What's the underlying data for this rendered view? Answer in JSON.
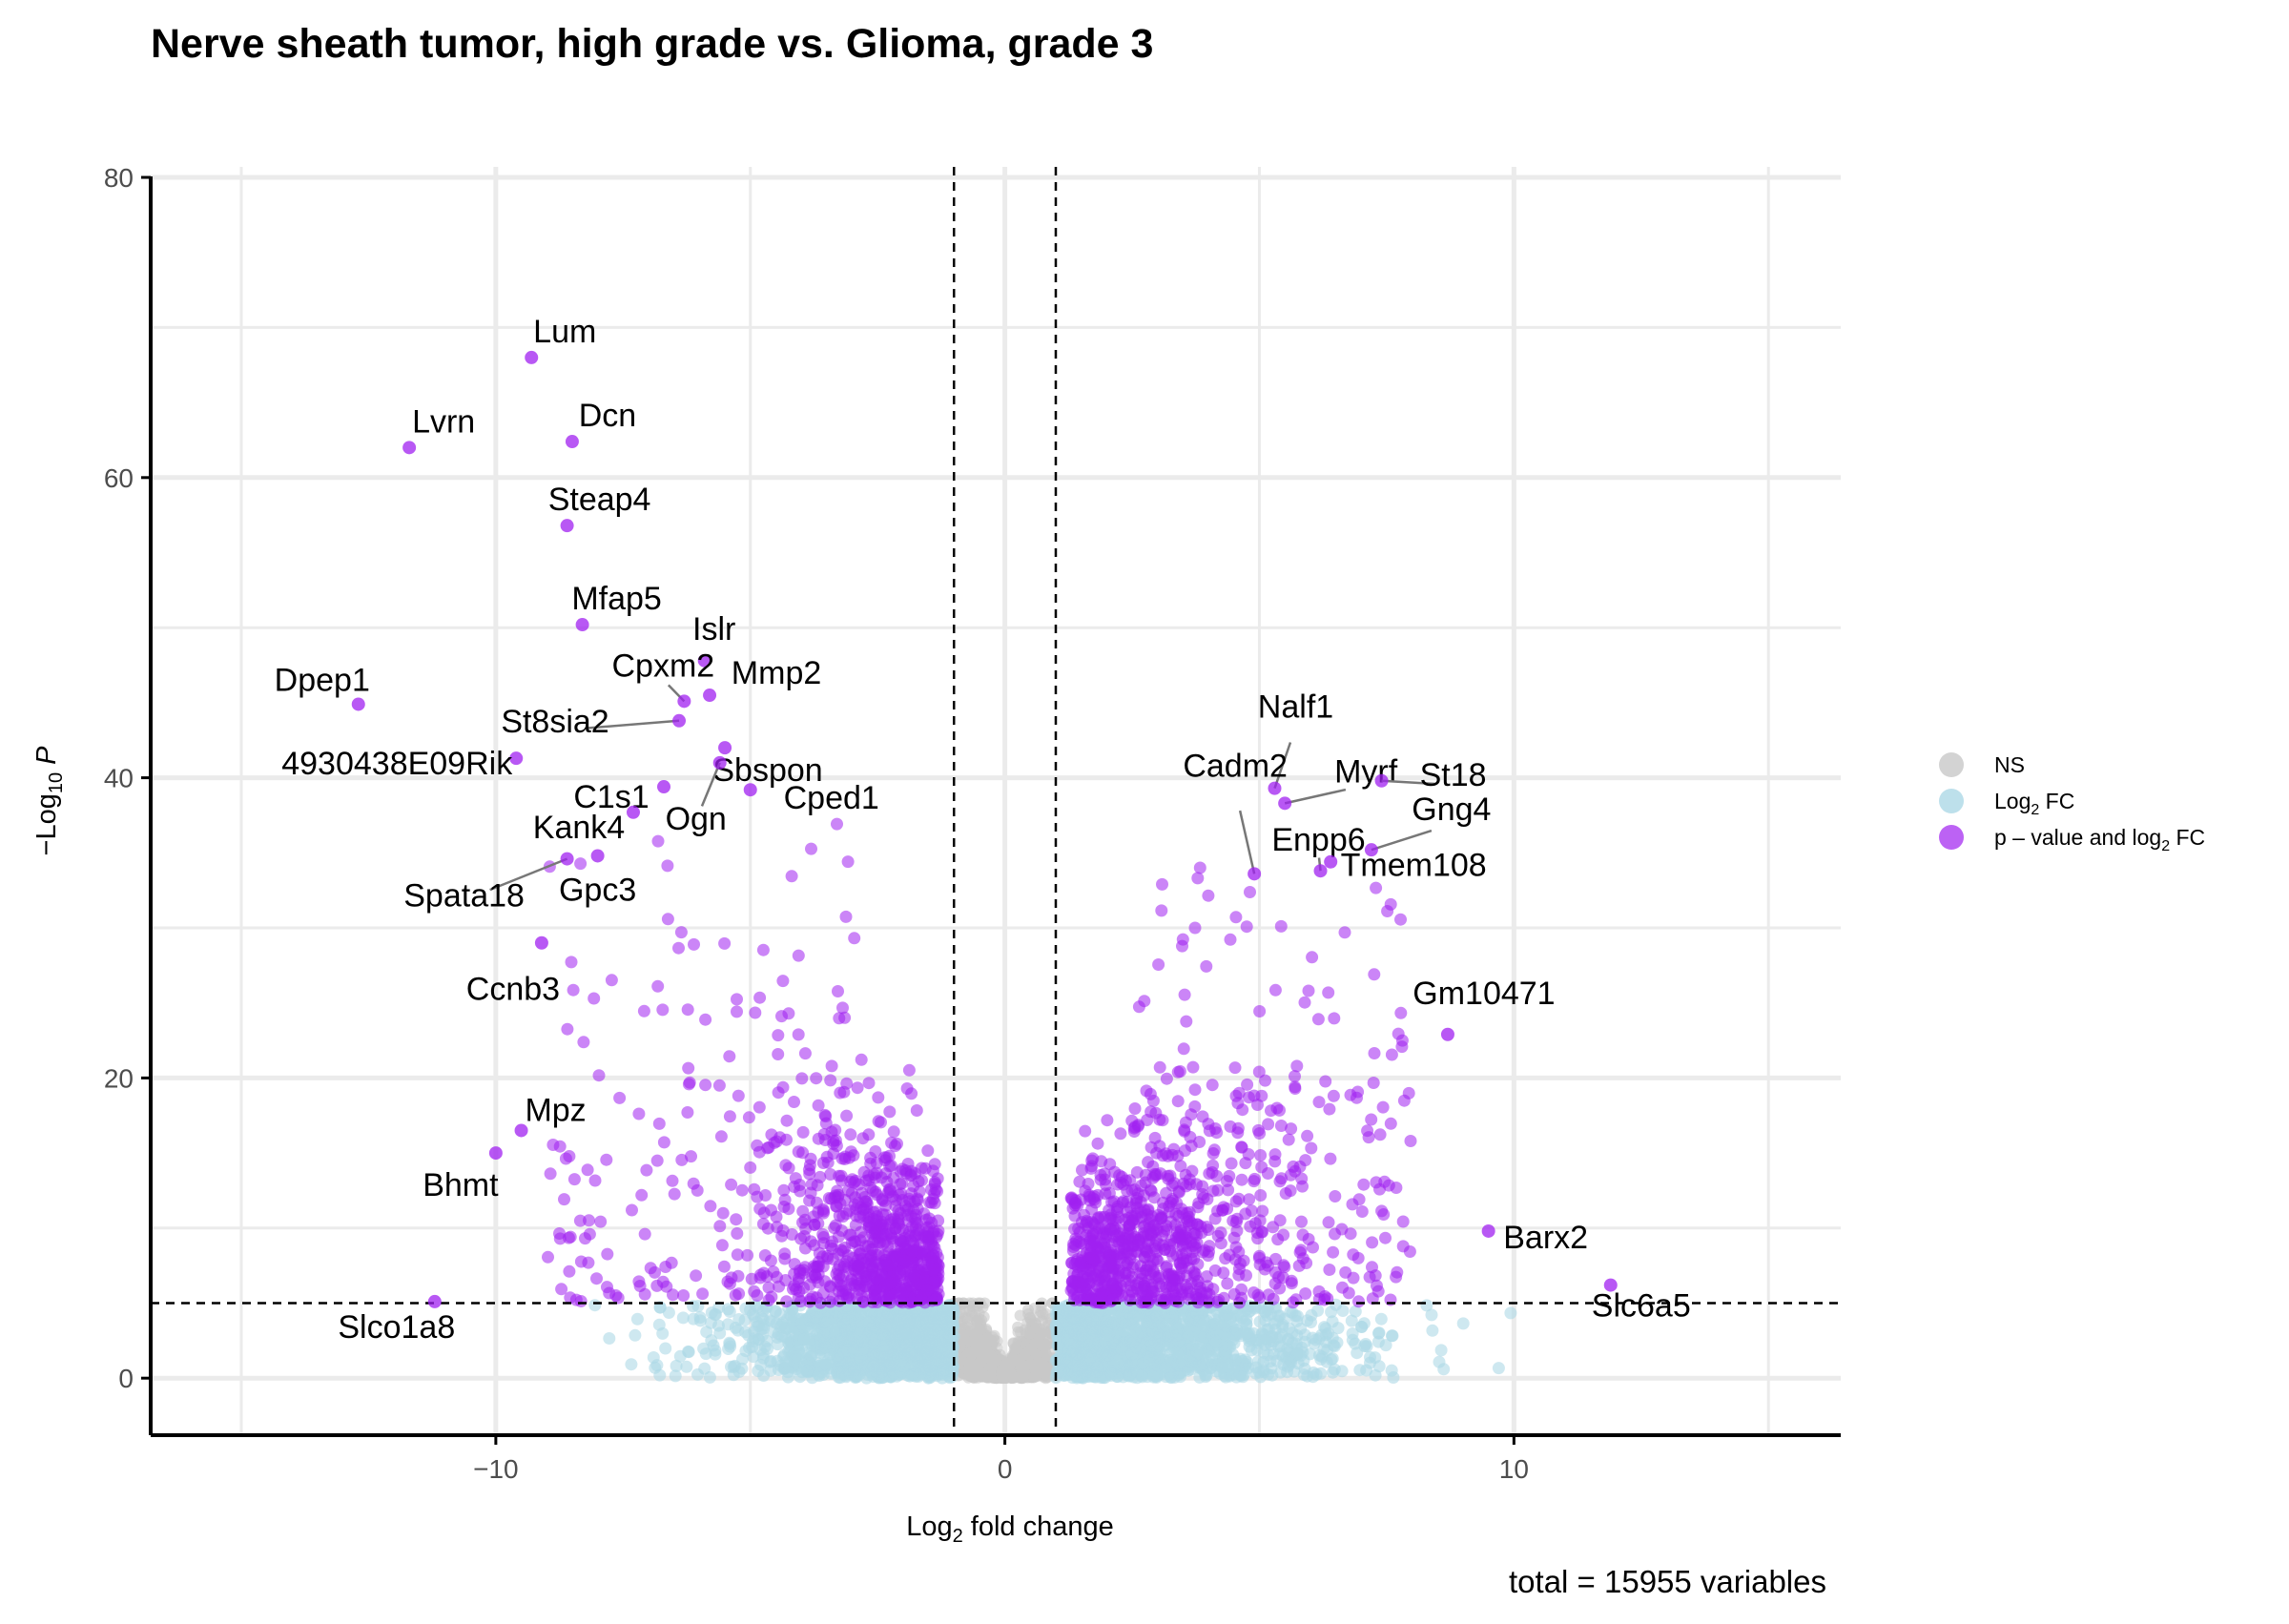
{
  "chart_data": {
    "type": "scatter",
    "title": "Nerve sheath tumor, high grade vs. Glioma, grade 3",
    "xlabel": "Log2 fold change",
    "ylabel": "-Log10 P",
    "xlim": [
      -15,
      15
    ],
    "ylim": [
      0,
      80
    ],
    "x_ticks": [
      "−10",
      "0",
      "10"
    ],
    "y_ticks": [
      "0",
      "20",
      "40",
      "60",
      "80"
    ],
    "grid": true,
    "fc_cutoff": 1,
    "p_cutoff_log10": 5,
    "caption": "total = 15955 variables",
    "legend": {
      "placement": "right",
      "items": [
        {
          "key": "NS",
          "label": "NS",
          "color": "#c8c8c8"
        },
        {
          "key": "FC",
          "label": "Log2 FC",
          "color": "#add8e6"
        },
        {
          "key": "P_FC",
          "label": "p – value and log2 FC",
          "color": "#a020f0"
        }
      ]
    },
    "labeled_genes": [
      {
        "name": "Lum",
        "x": -9.3,
        "y": 68
      },
      {
        "name": "Lvrn",
        "x": -11.7,
        "y": 62
      },
      {
        "name": "Dcn",
        "x": -8.5,
        "y": 62.4
      },
      {
        "name": "Steap4",
        "x": -8.6,
        "y": 56.8
      },
      {
        "name": "Mfap5",
        "x": -8.3,
        "y": 50.2
      },
      {
        "name": "Islr",
        "x": -5.9,
        "y": 47.8
      },
      {
        "name": "Cpxm2",
        "x": -6.3,
        "y": 45.1
      },
      {
        "name": "Mmp2",
        "x": -5.8,
        "y": 45.5
      },
      {
        "name": "Dpep1",
        "x": -12.7,
        "y": 44.9
      },
      {
        "name": "St8sia2",
        "x": -6.4,
        "y": 43.8
      },
      {
        "name": "Sbspon",
        "x": -5.5,
        "y": 42.0
      },
      {
        "name": "4930438E09Rik",
        "x": -9.6,
        "y": 41.3
      },
      {
        "name": "C1s1",
        "x": -6.7,
        "y": 39.4
      },
      {
        "name": "Cped1",
        "x": -5.0,
        "y": 39.2
      },
      {
        "name": "Ogn",
        "x": -5.6,
        "y": 41.0
      },
      {
        "name": "Kank4",
        "x": -7.3,
        "y": 37.7
      },
      {
        "name": "Spata18",
        "x": -8.6,
        "y": 34.6
      },
      {
        "name": "Gpc3",
        "x": -8.0,
        "y": 34.8
      },
      {
        "name": "Ccnb3",
        "x": -9.1,
        "y": 29.0
      },
      {
        "name": "Mpz",
        "x": -9.5,
        "y": 16.5
      },
      {
        "name": "Bhmt",
        "x": -10.0,
        "y": 15.0
      },
      {
        "name": "Slco1a8",
        "x": -11.2,
        "y": 5.1
      },
      {
        "name": "Nalf1",
        "x": 5.3,
        "y": 39.3
      },
      {
        "name": "Cadm2",
        "x": 4.9,
        "y": 33.6
      },
      {
        "name": "Myrf",
        "x": 5.5,
        "y": 38.3
      },
      {
        "name": "St18",
        "x": 7.4,
        "y": 39.8
      },
      {
        "name": "Enpp6",
        "x": 6.2,
        "y": 33.8
      },
      {
        "name": "Gng4",
        "x": 7.2,
        "y": 35.2
      },
      {
        "name": "Tmem108",
        "x": 6.4,
        "y": 34.4
      },
      {
        "name": "Gm10471",
        "x": 8.7,
        "y": 22.9
      },
      {
        "name": "Barx2",
        "x": 9.5,
        "y": 9.8
      },
      {
        "name": "Slc6a5",
        "x": 11.9,
        "y": 6.2
      }
    ]
  }
}
